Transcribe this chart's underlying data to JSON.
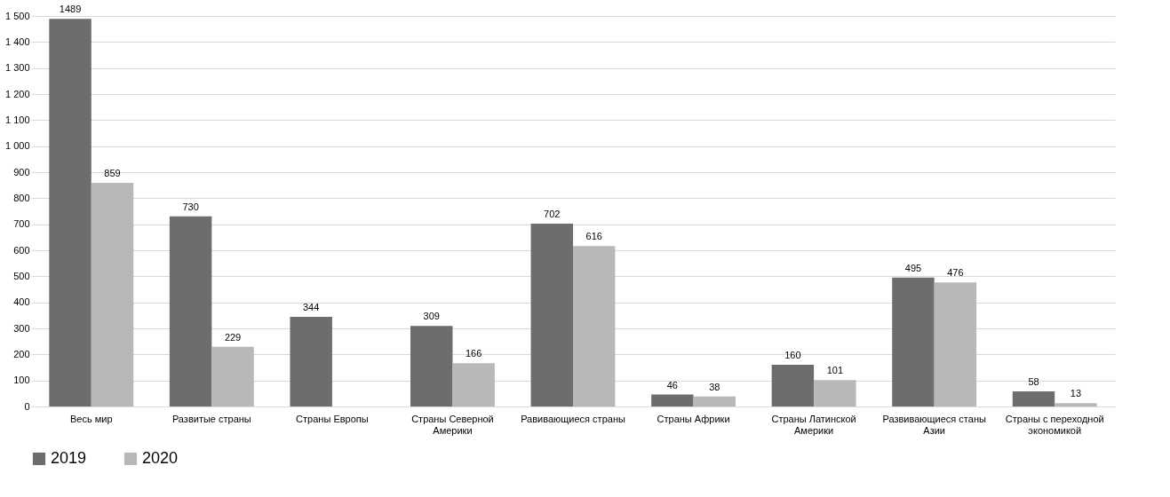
{
  "chart_data": {
    "type": "bar",
    "categories": [
      "Весь мир",
      "Развитые страны",
      "Страны Европы",
      "Страны Северной Америки",
      "Равивающиеся страны",
      "Страны Африки",
      "Страны Латинской Америки",
      "Развивающиеся станы Азии",
      "Страны с переходной экономикой"
    ],
    "series": [
      {
        "name": "2019",
        "color": "#6d6d6d",
        "values": [
          1489,
          730,
          344,
          309,
          702,
          46,
          160,
          495,
          58
        ]
      },
      {
        "name": "2020",
        "color": "#b8b8b8",
        "values": [
          859,
          229,
          null,
          166,
          616,
          38,
          101,
          476,
          13
        ]
      }
    ],
    "ylim": [
      0,
      1500
    ],
    "yticks": [
      0,
      100,
      200,
      300,
      400,
      500,
      600,
      700,
      800,
      900,
      {
        "value": 1000,
        "label": "1 000"
      },
      {
        "value": 1100,
        "label": "1 100"
      },
      {
        "value": 1200,
        "label": "1 200"
      },
      {
        "value": 1300,
        "label": "1 300"
      },
      {
        "value": 1400,
        "label": "1 400"
      },
      {
        "value": 1500,
        "label": "1 500"
      }
    ],
    "grid": "y",
    "legend": "bottom",
    "data_labels": true
  }
}
